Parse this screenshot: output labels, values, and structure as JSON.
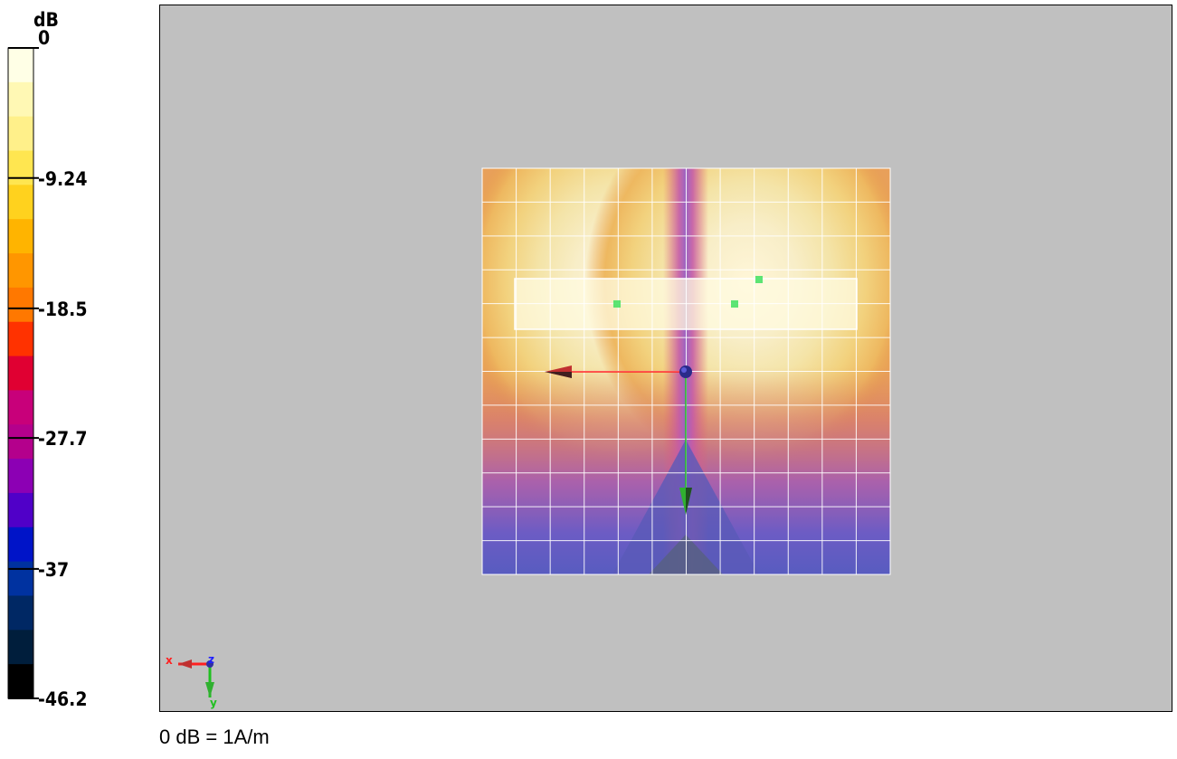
{
  "chart_data": {
    "type": "heatmap",
    "unit_label": "dB",
    "colorbar": {
      "max": 0,
      "min": -46.2,
      "tick_labels": [
        "0",
        "-9.24",
        "-18.5",
        "-27.7",
        "-37",
        "-46.2"
      ],
      "tick_values": [
        0,
        -9.24,
        -18.5,
        -27.7,
        -37,
        -46.2
      ],
      "bands": [
        "#ffffe6",
        "#fff8b4",
        "#fff08a",
        "#ffe650",
        "#ffd21e",
        "#ffb400",
        "#ff9600",
        "#ff7800",
        "#ff3200",
        "#e00032",
        "#c8007a",
        "#b4008c",
        "#8c00b4",
        "#5000c8",
        "#0014c8",
        "#0032a0",
        "#002864",
        "#001e3c",
        "#000000"
      ]
    },
    "scan_area": {
      "grid_columns": 12,
      "grid_rows": 12,
      "description_values": "H-field pattern with two maxima left and right of a vertical null line; levels decrease toward the bottom"
    },
    "peak_markers": 3,
    "axes_indicator": {
      "x": "x",
      "y": "y",
      "z": "z"
    }
  },
  "footnote": "0 dB = 1A/m"
}
